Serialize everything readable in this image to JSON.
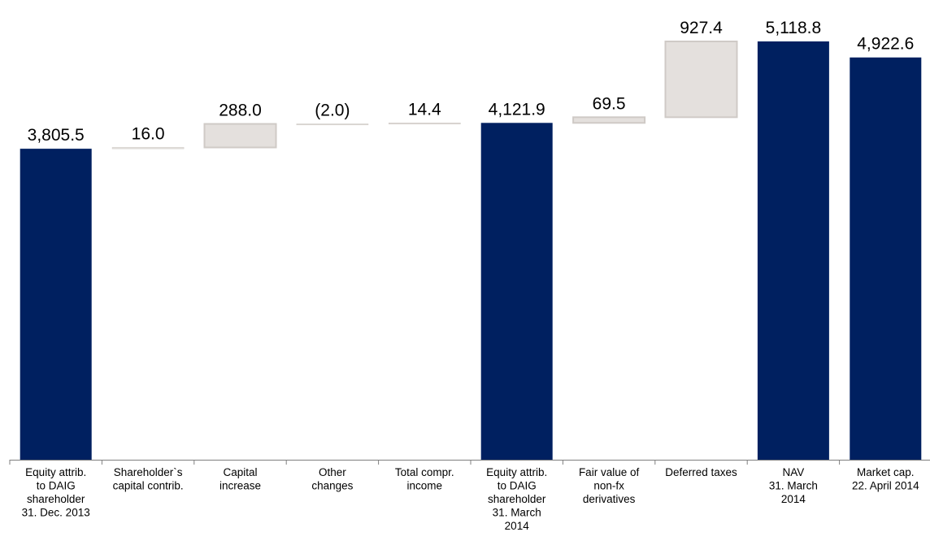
{
  "chart_data": {
    "type": "bar",
    "subtype": "waterfall",
    "title": "",
    "xlabel": "",
    "ylabel": "",
    "ylim": [
      0,
      5200
    ],
    "grid": false,
    "legend": "none",
    "categories": [
      {
        "lines": [
          "Equity attrib.",
          "to DAIG",
          "shareholder",
          "31. Dec. 2013"
        ]
      },
      {
        "lines": [
          "Shareholder`s",
          "capital contrib."
        ]
      },
      {
        "lines": [
          "Capital",
          "increase"
        ]
      },
      {
        "lines": [
          "Other",
          "changes"
        ]
      },
      {
        "lines": [
          "Total compr.",
          "income"
        ]
      },
      {
        "lines": [
          "Equity attrib.",
          "to DAIG",
          "shareholder",
          "31. March",
          "2014"
        ]
      },
      {
        "lines": [
          "Fair value of",
          "non-fx",
          "derivatives"
        ]
      },
      {
        "lines": [
          "Deferred taxes"
        ]
      },
      {
        "lines": [
          "NAV",
          "31. March",
          "2014"
        ]
      },
      {
        "lines": [
          "Market cap.",
          "22. April 2014"
        ]
      }
    ],
    "bars": [
      {
        "kind": "total",
        "start": 0,
        "end": 3805.5,
        "value": 3805.5,
        "label": "3,805.5"
      },
      {
        "kind": "delta",
        "start": 3805.5,
        "end": 3821.5,
        "value": 16.0,
        "label": "16.0"
      },
      {
        "kind": "delta",
        "start": 3821.5,
        "end": 4109.5,
        "value": 288.0,
        "label": "288.0"
      },
      {
        "kind": "delta",
        "start": 4109.5,
        "end": 4107.5,
        "value": -2.0,
        "label": "(2.0)"
      },
      {
        "kind": "delta",
        "start": 4107.5,
        "end": 4121.9,
        "value": 14.4,
        "label": "14.4"
      },
      {
        "kind": "total",
        "start": 0,
        "end": 4121.9,
        "value": 4121.9,
        "label": "4,121.9"
      },
      {
        "kind": "delta",
        "start": 4121.9,
        "end": 4191.4,
        "value": 69.5,
        "label": "69.5"
      },
      {
        "kind": "delta",
        "start": 4191.4,
        "end": 5118.8,
        "value": 927.4,
        "label": "927.4"
      },
      {
        "kind": "total",
        "start": 0,
        "end": 5118.8,
        "value": 5118.8,
        "label": "5,118.8"
      },
      {
        "kind": "total",
        "start": 0,
        "end": 4922.6,
        "value": 4922.6,
        "label": "4,922.6"
      }
    ],
    "colors": {
      "total": "#002060",
      "delta": "#e4e0dd",
      "delta_stroke": "#cfcac6",
      "axis": "#7f7f7f",
      "text": "#000000"
    }
  }
}
